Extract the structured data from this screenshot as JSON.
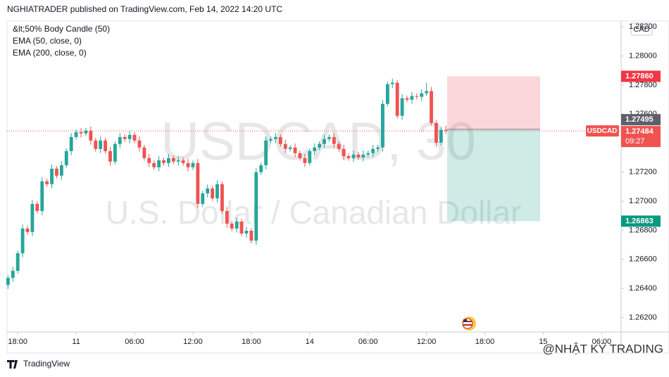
{
  "header": {
    "text": "NGHIATRADER published on TradingView.com, Feb 14, 2022 14:20 UTC"
  },
  "chart_data": {
    "type": "candlestick",
    "symbol_watermark": "USDCAD, 30",
    "description_watermark": "U.S. Dollar / Canadian Dollar",
    "indicators": [
      "&lt;50% Body Candle (50)",
      "EMA (50, close, 0)",
      "EMA (200, close, 0)"
    ],
    "currency": "CAD",
    "open": [
      1.26424,
      1.26472,
      1.26521,
      1.26642,
      1.26812,
      1.26788,
      1.26982,
      1.26933,
      1.27137,
      1.27117,
      1.27224,
      1.27176,
      1.27248,
      1.27345,
      1.27442,
      1.27476,
      1.27467,
      1.27486,
      1.27418,
      1.2736,
      1.27418,
      1.27345,
      1.27273,
      1.27394,
      1.27442,
      1.27428,
      1.27457,
      1.27418,
      1.2737,
      1.27297,
      1.27263,
      1.27234,
      1.27282,
      1.27263,
      1.27297,
      1.27273,
      1.27282,
      1.27263,
      1.27234,
      1.27263,
      1.26982,
      1.27054,
      1.27088,
      1.2702,
      1.27117,
      1.26933,
      1.26846,
      1.26812,
      1.2686,
      1.26778,
      1.26797,
      1.26729,
      1.272,
      1.27248,
      1.27418,
      1.27428,
      1.27442,
      1.27394,
      1.2736,
      1.2737,
      1.27331,
      1.27297,
      1.27263,
      1.27345,
      1.2737,
      1.27394,
      1.27428,
      1.27442,
      1.27394,
      1.2736,
      1.27311,
      1.27297,
      1.27321,
      1.27302,
      1.27321,
      1.27331,
      1.2736,
      1.2737,
      1.2767,
      1.27806,
      1.27816,
      1.27588,
      1.27709,
      1.27699,
      1.27724,
      1.27719,
      1.27743,
      1.27758,
      1.27539,
      1.27403,
      1.27491
    ],
    "high": [
      1.2649,
      1.26549,
      1.2666,
      1.2684,
      1.2683,
      1.2701,
      1.27,
      1.27165,
      1.27155,
      1.27252,
      1.27242,
      1.27276,
      1.27363,
      1.2747,
      1.27494,
      1.27504,
      1.27504,
      1.27514,
      1.27436,
      1.27446,
      1.27436,
      1.27373,
      1.27412,
      1.2747,
      1.2746,
      1.27485,
      1.27475,
      1.27446,
      1.27388,
      1.27325,
      1.27281,
      1.2731,
      1.273,
      1.27325,
      1.27315,
      1.2731,
      1.273,
      1.27291,
      1.27281,
      1.27291,
      1.27072,
      1.27116,
      1.27106,
      1.27145,
      1.27135,
      1.26961,
      1.26864,
      1.26888,
      1.26878,
      1.26825,
      1.26815,
      1.27228,
      1.27266,
      1.27446,
      1.27446,
      1.2747,
      1.2746,
      1.27422,
      1.27388,
      1.27398,
      1.27349,
      1.27325,
      1.27363,
      1.27398,
      1.27412,
      1.27456,
      1.2746,
      1.2747,
      1.27412,
      1.27388,
      1.27329,
      1.27349,
      1.27339,
      1.27349,
      1.27349,
      1.27388,
      1.27388,
      1.27698,
      1.27824,
      1.27844,
      1.27834,
      1.27737,
      1.27727,
      1.27752,
      1.27742,
      1.27771,
      1.27816,
      1.27786,
      1.27557,
      1.27509,
      1.27519
    ],
    "low": [
      1.26396,
      1.26444,
      1.26503,
      1.26614,
      1.2677,
      1.2676,
      1.26915,
      1.26905,
      1.27099,
      1.27089,
      1.27158,
      1.27148,
      1.2723,
      1.27317,
      1.27424,
      1.27439,
      1.27449,
      1.2739,
      1.27342,
      1.27332,
      1.27327,
      1.27245,
      1.27255,
      1.27366,
      1.2741,
      1.274,
      1.274,
      1.27342,
      1.27279,
      1.27235,
      1.27216,
      1.27206,
      1.27245,
      1.27235,
      1.27255,
      1.27245,
      1.27245,
      1.27206,
      1.27216,
      1.26954,
      1.26964,
      1.27026,
      1.27002,
      1.26992,
      1.26915,
      1.26818,
      1.26794,
      1.26784,
      1.2676,
      1.2675,
      1.26711,
      1.26701,
      1.27182,
      1.2722,
      1.274,
      1.274,
      1.27376,
      1.27332,
      1.27342,
      1.27303,
      1.27279,
      1.27235,
      1.27245,
      1.27317,
      1.27352,
      1.27366,
      1.2741,
      1.27366,
      1.27342,
      1.27283,
      1.27279,
      1.27269,
      1.27284,
      1.27274,
      1.27303,
      1.27303,
      1.27342,
      1.27342,
      1.27652,
      1.27778,
      1.2757,
      1.2756,
      1.27681,
      1.27671,
      1.27701,
      1.27691,
      1.27725,
      1.27521,
      1.27375,
      1.27385,
      1.27466
    ],
    "close": [
      1.26472,
      1.26521,
      1.26642,
      1.26812,
      1.26788,
      1.26982,
      1.26933,
      1.27137,
      1.27117,
      1.27224,
      1.27176,
      1.27248,
      1.27345,
      1.27442,
      1.27476,
      1.27467,
      1.27486,
      1.27418,
      1.2736,
      1.27418,
      1.27345,
      1.27273,
      1.27394,
      1.27442,
      1.27428,
      1.27457,
      1.27418,
      1.2737,
      1.27297,
      1.27263,
      1.27234,
      1.27282,
      1.27263,
      1.27297,
      1.27273,
      1.27282,
      1.27263,
      1.27234,
      1.27263,
      1.26982,
      1.27054,
      1.27088,
      1.2702,
      1.27117,
      1.26933,
      1.26846,
      1.26812,
      1.2686,
      1.26778,
      1.26797,
      1.26729,
      1.272,
      1.27248,
      1.27418,
      1.27428,
      1.27442,
      1.27394,
      1.2736,
      1.2737,
      1.27331,
      1.27297,
      1.27263,
      1.27345,
      1.2737,
      1.27394,
      1.27428,
      1.27442,
      1.27394,
      1.2736,
      1.27311,
      1.27297,
      1.27321,
      1.27302,
      1.27321,
      1.27331,
      1.2736,
      1.2737,
      1.2767,
      1.27806,
      1.27816,
      1.27588,
      1.27709,
      1.27699,
      1.27724,
      1.27719,
      1.27743,
      1.27758,
      1.27539,
      1.27403,
      1.27491,
      1.27484
    ],
    "up_color": "#26a69a",
    "down_color": "#ef5350",
    "xlim": [
      -0.2,
      126
    ],
    "xticks": [
      {
        "value": 2,
        "label": "18:00"
      },
      {
        "value": 14,
        "label": "11"
      },
      {
        "value": 26,
        "label": "06:00"
      },
      {
        "value": 38,
        "label": "12:00"
      },
      {
        "value": 50,
        "label": "18:00"
      },
      {
        "value": 62,
        "label": "14"
      },
      {
        "value": 74,
        "label": "06:00"
      },
      {
        "value": 86,
        "label": "12:00"
      },
      {
        "value": 98,
        "label": "18:00"
      },
      {
        "value": 110,
        "label": "15"
      },
      {
        "value": 122,
        "label": "06:00"
      }
    ],
    "ylim": [
      1.261,
      1.2824
    ],
    "yticks": [
      {
        "value": 1.262,
        "label": "1.26200"
      },
      {
        "value": 1.264,
        "label": "1.26400"
      },
      {
        "value": 1.266,
        "label": "1.26600"
      },
      {
        "value": 1.268,
        "label": "1.26800"
      },
      {
        "value": 1.27,
        "label": "1.27000"
      },
      {
        "value": 1.272,
        "label": "1.27200"
      },
      {
        "value": 1.276,
        "label": "1.27600"
      },
      {
        "value": 1.278,
        "label": "1.27800"
      },
      {
        "value": 1.28,
        "label": "1.28000"
      },
      {
        "value": 1.282,
        "label": "1.28200"
      }
    ],
    "last_price": 1.27484,
    "last_label": "USDCAD",
    "countdown": "09:27",
    "position": {
      "stop": {
        "value": 1.2786,
        "label": "1.27860"
      },
      "entry": 1.27495,
      "target": 1.26863
    }
  },
  "footer": {
    "brand": "TradingView",
    "watermark": "@NHẬT KÝ TRADING"
  }
}
